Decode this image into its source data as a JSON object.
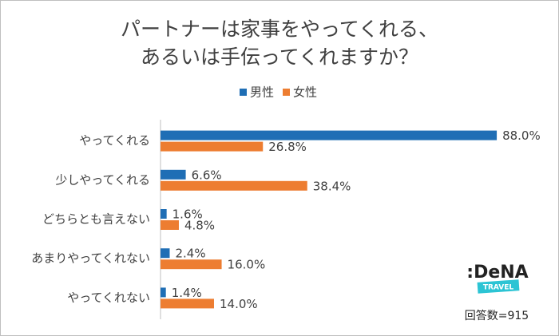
{
  "chart_data": {
    "type": "bar",
    "orientation": "horizontal",
    "title": [
      "パートナーは家事をやってくれる、",
      "あるいは手伝ってくれますか？"
    ],
    "categories": [
      "やってくれる",
      "少しやってくれる",
      "どちらとも言えない",
      "あまりやってくれない",
      "やってくれない"
    ],
    "series": [
      {
        "name": "男性",
        "color": "#1f6eb5",
        "values": [
          88.0,
          6.6,
          1.6,
          2.4,
          1.4
        ],
        "value_labels": [
          "88.0%",
          "6.6%",
          "1.6%",
          "2.4%",
          "1.4%"
        ]
      },
      {
        "name": "女性",
        "color": "#ed7d31",
        "values": [
          26.8,
          38.4,
          4.8,
          16.0,
          14.0
        ],
        "value_labels": [
          "26.8%",
          "38.4%",
          "4.8%",
          "16.0%",
          "14.0%"
        ]
      }
    ],
    "legend": "top",
    "logo": ":DeNA",
    "logo_subtitle": "TRAVEL",
    "annotation": "回答数=915"
  }
}
